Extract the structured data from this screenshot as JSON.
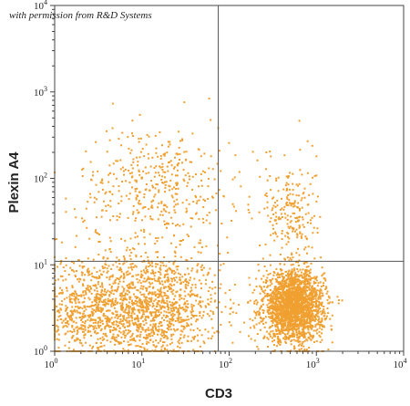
{
  "watermark": "with permission from R&D Systems",
  "chart_data": {
    "type": "scatter",
    "title": "",
    "xlabel": "CD3",
    "ylabel": "Plexin A4",
    "x_scale": "log",
    "y_scale": "log",
    "xlim": [
      1,
      10000
    ],
    "ylim": [
      1,
      10000
    ],
    "xticks": [
      {
        "base": "10",
        "exp": "0"
      },
      {
        "base": "10",
        "exp": "1"
      },
      {
        "base": "10",
        "exp": "2"
      },
      {
        "base": "10",
        "exp": "3"
      },
      {
        "base": "10",
        "exp": "4"
      }
    ],
    "yticks": [
      {
        "base": "10",
        "exp": "0"
      },
      {
        "base": "10",
        "exp": "1"
      },
      {
        "base": "10",
        "exp": "2"
      },
      {
        "base": "10",
        "exp": "3"
      },
      {
        "base": "10",
        "exp": "4"
      }
    ],
    "quadrant_gates": {
      "x": 75,
      "y": 11
    },
    "grid": false,
    "point_color": "#f0a030",
    "populations": [
      {
        "center": [
          12,
          3.2
        ],
        "spread_log": [
          0.42,
          0.32
        ],
        "count": 1400
      },
      {
        "center": [
          2.2,
          3.0
        ],
        "spread_log": [
          0.28,
          0.33
        ],
        "count": 500
      },
      {
        "center": [
          15,
          80
        ],
        "spread_log": [
          0.45,
          0.35
        ],
        "count": 450
      },
      {
        "center": [
          550,
          3.3
        ],
        "spread_log": [
          0.17,
          0.2
        ],
        "count": 2300
      },
      {
        "center": [
          500,
          40
        ],
        "spread_log": [
          0.15,
          0.3
        ],
        "count": 220
      }
    ]
  }
}
